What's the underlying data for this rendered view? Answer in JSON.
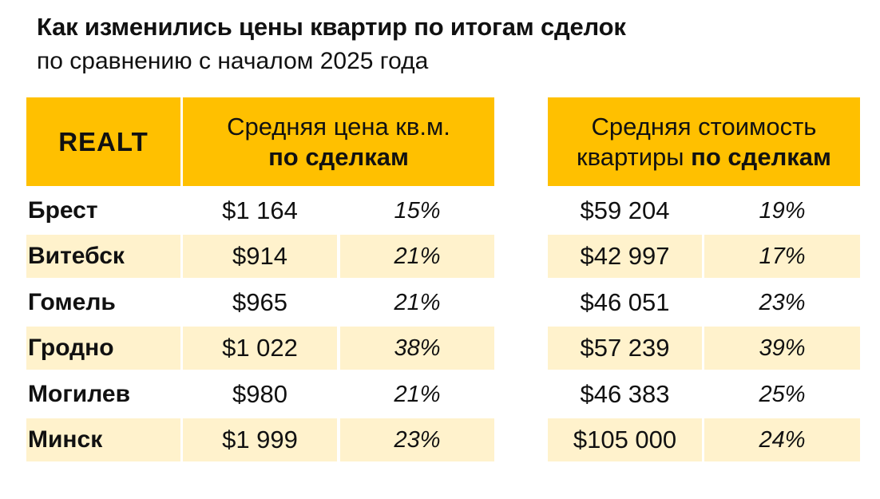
{
  "header": {
    "title": "Как изменились цены квартир по итогам сделок",
    "subtitle": "по сравнению с началом 2025 года"
  },
  "logo": {
    "text": "REALT"
  },
  "columns": {
    "price_sqm": {
      "line1": "Средняя цена кв.м.",
      "line2": "по сделкам"
    },
    "price_flat": {
      "line1": "Средняя стоимость",
      "line2_plain": "квартиры ",
      "line2_bold": "по сделкам"
    }
  },
  "rows": [
    {
      "city": "Брест",
      "sqm_price": "$1 164",
      "sqm_change": "15%",
      "flat_price": "$59 204",
      "flat_change": "19%"
    },
    {
      "city": "Витебск",
      "sqm_price": "$914",
      "sqm_change": "21%",
      "flat_price": "$42 997",
      "flat_change": "17%"
    },
    {
      "city": "Гомель",
      "sqm_price": "$965",
      "sqm_change": "21%",
      "flat_price": "$46 051",
      "flat_change": "23%"
    },
    {
      "city": "Гродно",
      "sqm_price": "$1 022",
      "sqm_change": "38%",
      "flat_price": "$57 239",
      "flat_change": "39%"
    },
    {
      "city": "Могилев",
      "sqm_price": "$980",
      "sqm_change": "21%",
      "flat_price": "$46 383",
      "flat_change": "25%"
    },
    {
      "city": "Минск",
      "sqm_price": "$1 999",
      "sqm_change": "23%",
      "flat_price": "$105 000",
      "flat_change": "24%"
    }
  ],
  "colors": {
    "accent": "#ffc000",
    "stripe": "#fff2cc"
  }
}
